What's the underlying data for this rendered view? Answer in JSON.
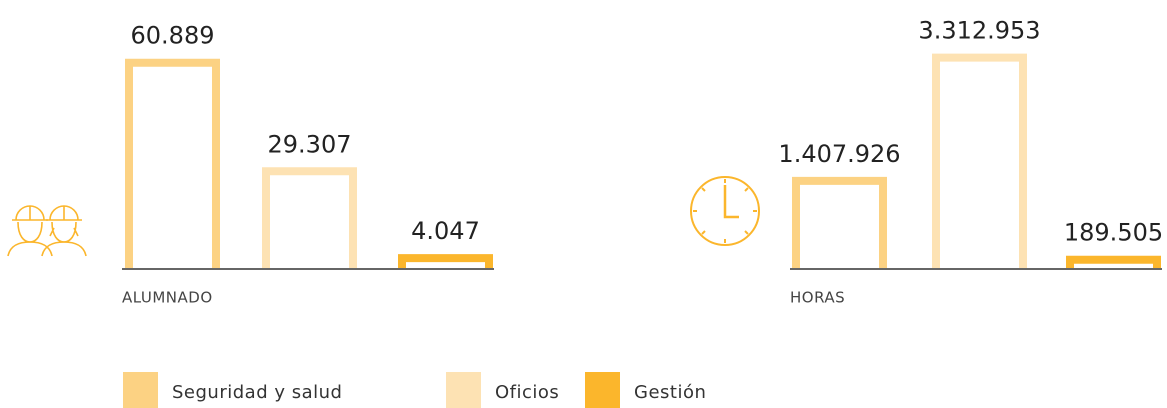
{
  "legend": [
    {
      "name": "Seguridad y salud",
      "color": "#fcd283"
    },
    {
      "name": "Oficios",
      "color": "#fde2b3"
    },
    {
      "name": "Gestión",
      "color": "#fbb62c"
    }
  ],
  "chart_data": [
    {
      "type": "bar",
      "label": "ALUMNADO",
      "values": [
        60889,
        29307,
        4047
      ],
      "value_labels": [
        "60.889",
        "29.307",
        "4.047"
      ],
      "ylim": [
        0,
        64000
      ]
    },
    {
      "type": "bar",
      "label": "HORAS",
      "values": [
        1407926,
        3312953,
        189505
      ],
      "value_labels": [
        "1.407.926",
        "3.312.953",
        "189.505"
      ],
      "ylim": [
        0,
        3400000
      ]
    }
  ]
}
